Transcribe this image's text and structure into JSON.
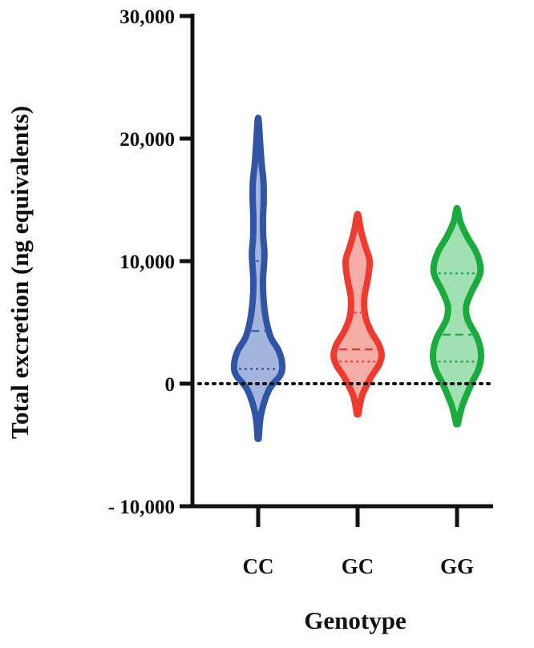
{
  "chart_data": {
    "type": "violin",
    "title": "",
    "xlabel": "Genotype",
    "ylabel": "Total excretion (ng equivalents)",
    "ylim": [
      -10000,
      30000
    ],
    "y_ticks": [
      {
        "value": 30000,
        "label": "30,000"
      },
      {
        "value": 20000,
        "label": "20,000"
      },
      {
        "value": 10000,
        "label": "10,000"
      },
      {
        "value": 0,
        "label": "0"
      },
      {
        "value": -10000,
        "label": "- 10,000"
      }
    ],
    "reference_line": {
      "value": 0,
      "style": "dotted"
    },
    "categories": [
      "CC",
      "GC",
      "GG"
    ],
    "series": [
      {
        "category": "CC",
        "color": "#2f55a4",
        "fill": "#93a8d6",
        "min": -4500,
        "max": 21500,
        "median": 4300,
        "q1": 1200,
        "q3": 10000,
        "profile": [
          [
            -4500,
            0.02
          ],
          [
            -2500,
            0.12
          ],
          [
            -500,
            0.45
          ],
          [
            700,
            0.92
          ],
          [
            1600,
            1.0
          ],
          [
            2700,
            0.85
          ],
          [
            3800,
            0.52
          ],
          [
            5300,
            0.32
          ],
          [
            7000,
            0.22
          ],
          [
            8500,
            0.2
          ],
          [
            10500,
            0.26
          ],
          [
            12000,
            0.21
          ],
          [
            13500,
            0.2
          ],
          [
            15000,
            0.23
          ],
          [
            16500,
            0.22
          ],
          [
            18000,
            0.14
          ],
          [
            20000,
            0.07
          ],
          [
            21500,
            0.02
          ]
        ]
      },
      {
        "category": "GC",
        "color": "#ef3a30",
        "fill": "#f59e98",
        "min": -2500,
        "max": 13700,
        "median": 2800,
        "q1": 1800,
        "q3": 5800,
        "profile": [
          [
            -2500,
            0.03
          ],
          [
            -1000,
            0.18
          ],
          [
            500,
            0.55
          ],
          [
            1500,
            0.88
          ],
          [
            2300,
            1.0
          ],
          [
            3200,
            0.88
          ],
          [
            4300,
            0.55
          ],
          [
            5500,
            0.32
          ],
          [
            7000,
            0.28
          ],
          [
            8500,
            0.42
          ],
          [
            10000,
            0.5
          ],
          [
            11200,
            0.32
          ],
          [
            12500,
            0.14
          ],
          [
            13700,
            0.03
          ]
        ]
      },
      {
        "category": "GG",
        "color": "#1aab3e",
        "fill": "#8fdaa4",
        "min": -3300,
        "max": 14200,
        "median": 4000,
        "q1": 1800,
        "q3": 9000,
        "profile": [
          [
            -3300,
            0.03
          ],
          [
            -1800,
            0.22
          ],
          [
            0,
            0.6
          ],
          [
            1200,
            0.9
          ],
          [
            2400,
            1.0
          ],
          [
            3700,
            0.85
          ],
          [
            5200,
            0.45
          ],
          [
            6300,
            0.38
          ],
          [
            7400,
            0.58
          ],
          [
            8800,
            0.93
          ],
          [
            9700,
            0.96
          ],
          [
            10800,
            0.78
          ],
          [
            12000,
            0.42
          ],
          [
            13200,
            0.14
          ],
          [
            14200,
            0.03
          ]
        ]
      }
    ]
  }
}
